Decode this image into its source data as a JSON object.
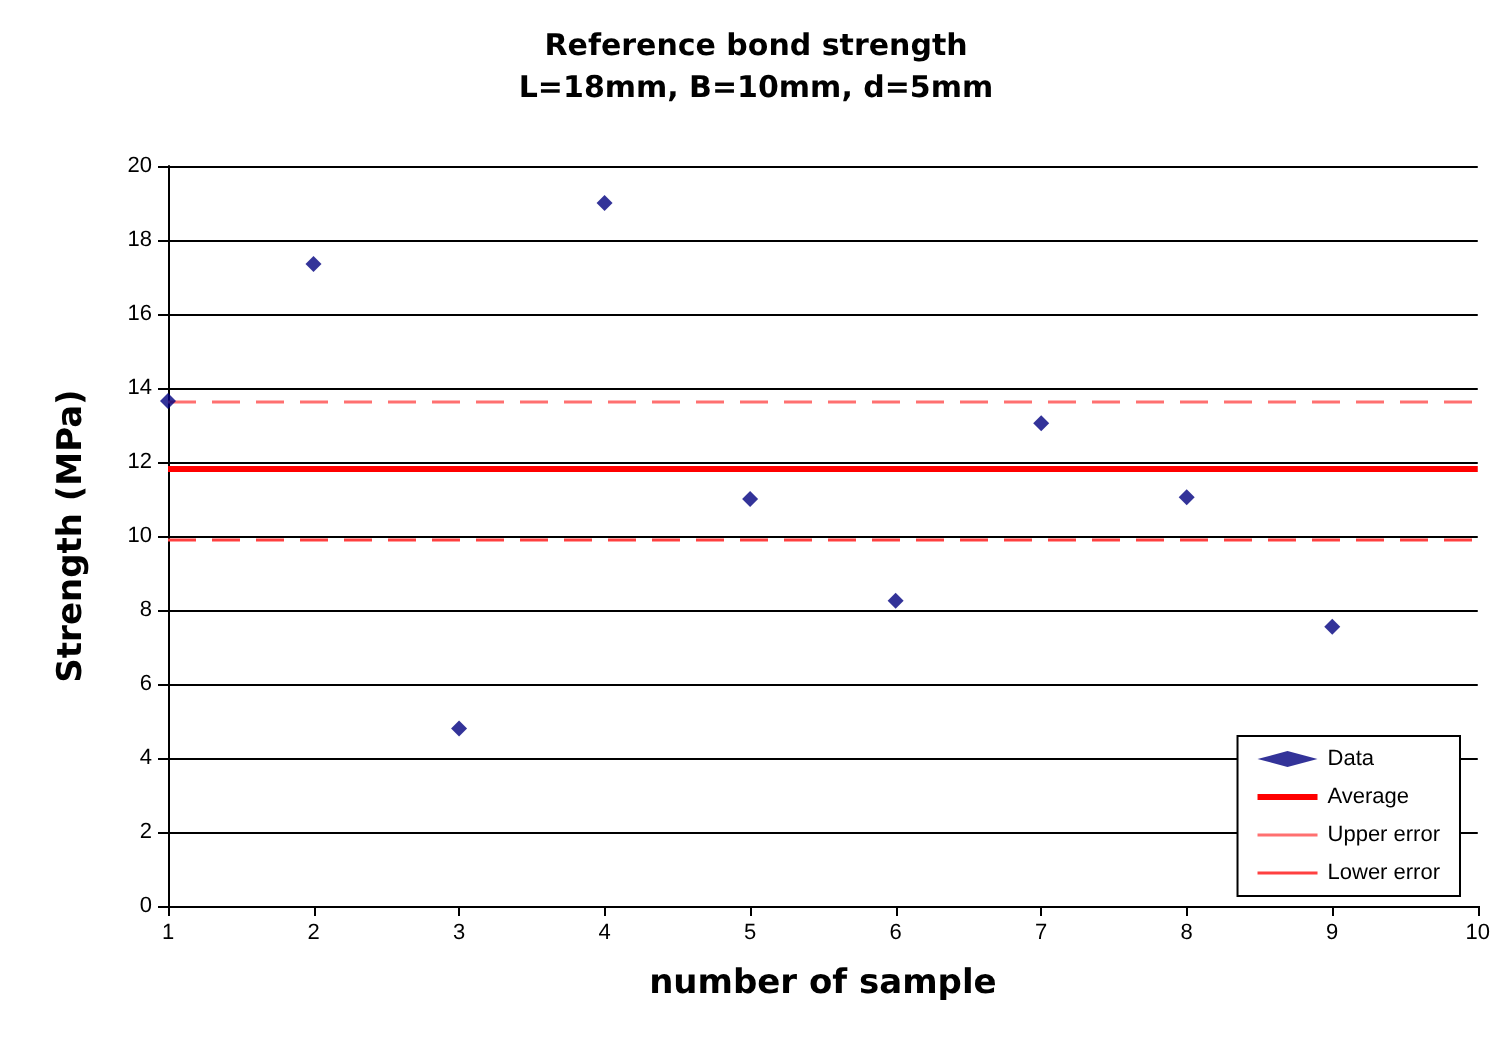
{
  "chart_data": {
    "type": "scatter",
    "title": "Reference bond strength",
    "subtitle": "L=18mm, B=10mm, d=5mm",
    "xlabel": "number of sample",
    "ylabel": "Strength (MPa)",
    "x": [
      1,
      2,
      3,
      4,
      5,
      6,
      7,
      8,
      9
    ],
    "series": [
      {
        "name": "Data",
        "color": "#000080",
        "values": [
          13.65,
          17.35,
          4.8,
          19.0,
          11.0,
          8.25,
          13.05,
          11.05,
          7.55
        ]
      }
    ],
    "ref_lines": [
      {
        "axis": "y",
        "value": 11.8,
        "label": "Average",
        "color": "#ff0000",
        "line_style": "solid"
      },
      {
        "axis": "y",
        "value": 13.65,
        "label": "Upper error",
        "color": "#ff7070",
        "line_style": "dashed"
      },
      {
        "axis": "y",
        "value": 9.9,
        "label": "Lower error",
        "color": "#ff4040",
        "line_style": "dashed"
      }
    ],
    "marker": "diamond",
    "xlim": [
      1,
      10
    ],
    "xticks": [
      1,
      2,
      3,
      4,
      5,
      6,
      7,
      8,
      9,
      10
    ],
    "ylim": [
      0,
      20
    ],
    "yticks": [
      0,
      2,
      4,
      6,
      8,
      10,
      12,
      14,
      16,
      18,
      20
    ],
    "grid": "y",
    "legend": "bottom right"
  }
}
